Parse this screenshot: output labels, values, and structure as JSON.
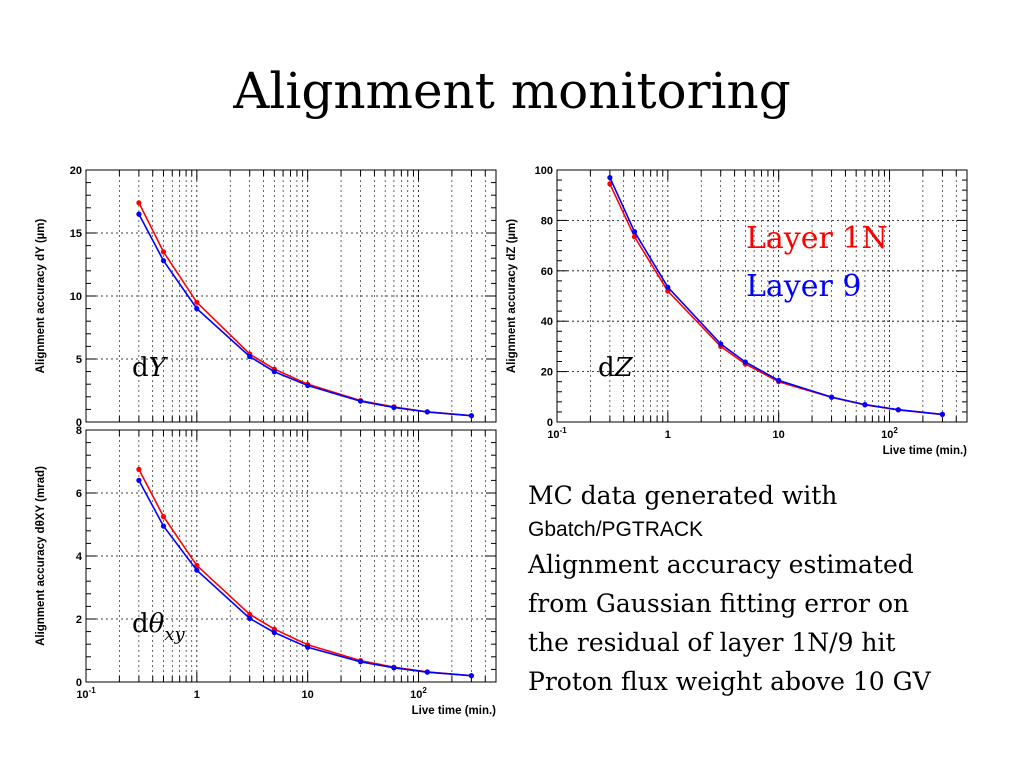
{
  "slide": {
    "title": "Alignment monitoring",
    "description": {
      "line1": "MC data generated with",
      "line2": "Gbatch/PGTRACK",
      "line3": "Alignment accuracy estimated",
      "line4": "from Gaussian fitting error on",
      "line5": "the residual of layer 1N/9 hit",
      "line6": "Proton flux weight above 10 GV"
    }
  },
  "colors": {
    "layer1N": "#ff0000",
    "layer9": "#0000ff",
    "grid": "#000000"
  },
  "chart_data": [
    {
      "id": "dY",
      "type": "line",
      "panel_label": "dY",
      "xlabel": "",
      "ylabel": "Alignment accuracy dY (µm)",
      "xscale": "log",
      "xlim": [
        0.1,
        500
      ],
      "ylim": [
        0,
        20
      ],
      "yticks": [
        0,
        5,
        10,
        15,
        20
      ],
      "grid": true,
      "x": [
        0.3,
        0.5,
        1,
        3,
        5,
        10,
        30,
        60,
        120,
        300
      ],
      "series": [
        {
          "name": "Layer 1N",
          "color": "#ff0000",
          "values": [
            17.4,
            13.5,
            9.5,
            5.4,
            4.2,
            3.0,
            1.7,
            1.2,
            0.8,
            0.5
          ]
        },
        {
          "name": "Layer 9",
          "color": "#0000ff",
          "values": [
            16.5,
            12.8,
            9.0,
            5.2,
            4.0,
            2.9,
            1.65,
            1.15,
            0.8,
            0.5
          ]
        }
      ]
    },
    {
      "id": "dZ",
      "type": "line",
      "panel_label": "dZ",
      "xlabel": "Live time (min.)",
      "ylabel": "Alignment accuracy dZ (µm)",
      "xscale": "log",
      "xlim": [
        0.1,
        500
      ],
      "ylim": [
        0,
        100
      ],
      "yticks": [
        0,
        20,
        40,
        60,
        80,
        100
      ],
      "grid": true,
      "legend_position": "top-right",
      "x": [
        0.3,
        0.5,
        1,
        3,
        5,
        10,
        30,
        60,
        120,
        300
      ],
      "series": [
        {
          "name": "Layer 1N",
          "color": "#ff0000",
          "values": [
            94.5,
            73.5,
            52.0,
            30.0,
            23.0,
            16.0,
            9.8,
            6.8,
            4.8,
            3.0
          ]
        },
        {
          "name": "Layer 9",
          "color": "#0000ff",
          "values": [
            97.0,
            75.5,
            53.5,
            31.0,
            23.8,
            16.5,
            9.9,
            6.9,
            4.9,
            3.0
          ]
        }
      ]
    },
    {
      "id": "dTheta",
      "type": "line",
      "panel_label": "dθxy",
      "xlabel": "Live time (min.)",
      "ylabel": "Alignment accuracy dθXY (mrad)",
      "xscale": "log",
      "xlim": [
        0.1,
        500
      ],
      "ylim": [
        0,
        8
      ],
      "yticks": [
        0,
        2,
        4,
        6,
        8
      ],
      "grid": true,
      "x": [
        0.3,
        0.5,
        1,
        3,
        5,
        10,
        30,
        60,
        120,
        300
      ],
      "series": [
        {
          "name": "Layer 1N",
          "color": "#ff0000",
          "values": [
            6.75,
            5.25,
            3.7,
            2.15,
            1.68,
            1.18,
            0.68,
            0.47,
            0.32,
            0.2
          ]
        },
        {
          "name": "Layer 9",
          "color": "#0000ff",
          "values": [
            6.4,
            4.95,
            3.55,
            2.02,
            1.57,
            1.1,
            0.64,
            0.45,
            0.31,
            0.2
          ]
        }
      ]
    }
  ]
}
